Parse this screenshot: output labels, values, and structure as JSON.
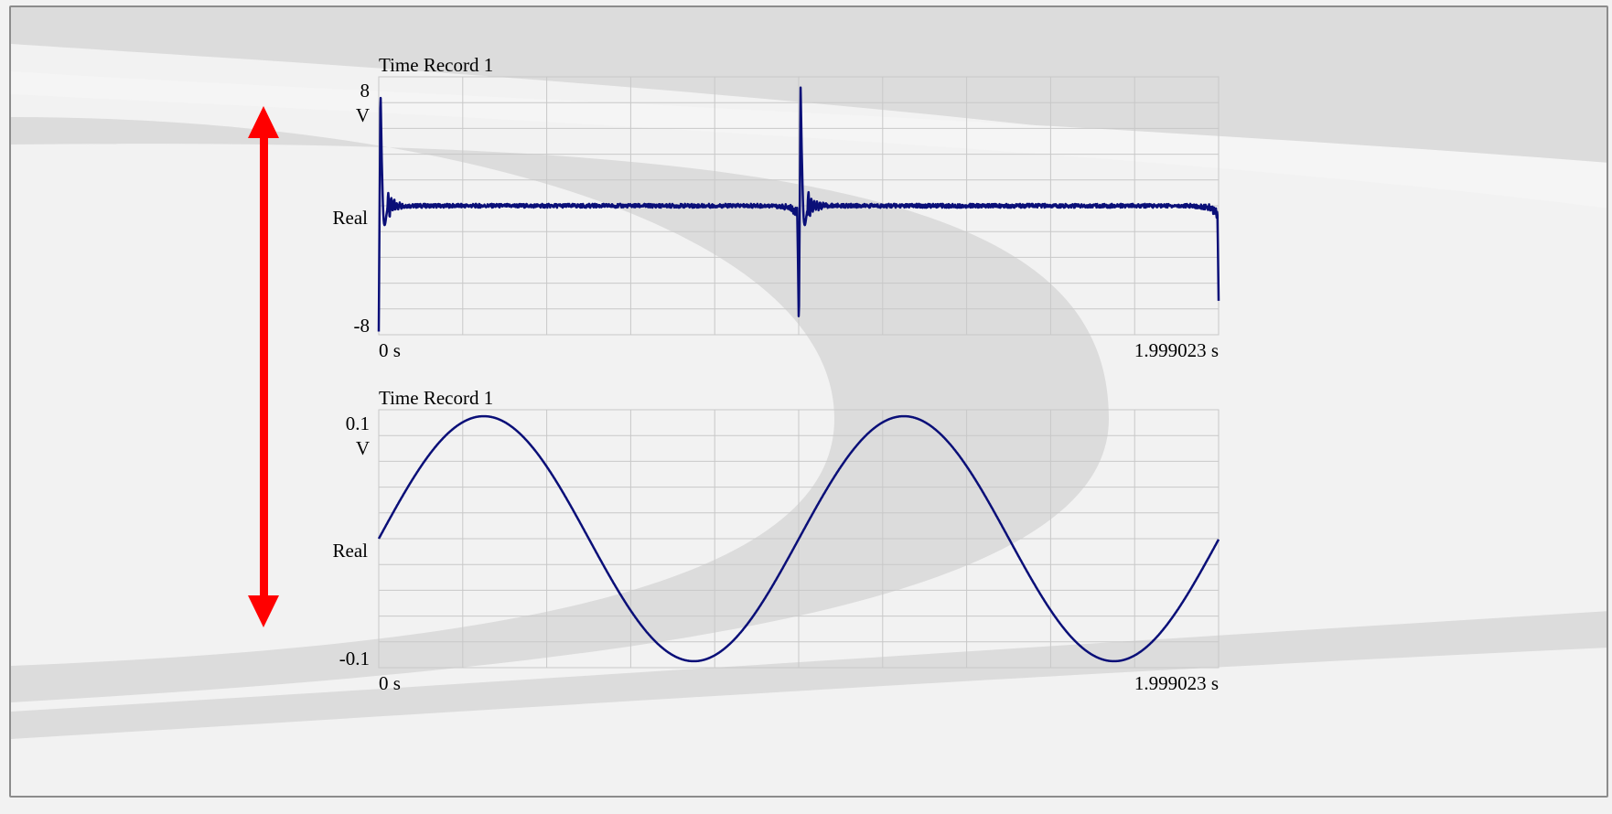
{
  "chart_data": [
    {
      "type": "line",
      "title": "Time Record 1",
      "ylabel_unit": "V",
      "ylabel": "Real",
      "y_tick_top": "8",
      "y_tick_bottom": "-8",
      "x_tick_left": "0  s",
      "x_tick_right": "1.999023   s",
      "xlim": [
        0,
        1.999023
      ],
      "ylim": [
        -8,
        8
      ],
      "grid": true,
      "line_color": "#0a0f78",
      "series": [
        {
          "shape": "periodic-spike",
          "period": 1.0,
          "baseline": 0,
          "peak": 7.4,
          "trough": -7.8,
          "ringing_decay": 0.015,
          "noise_amplitude": 0.12
        }
      ]
    },
    {
      "type": "line",
      "title": "Time Record 1",
      "ylabel_unit": "V",
      "ylabel": "Real",
      "y_tick_top": "0.1",
      "y_tick_bottom": "-0.1",
      "x_tick_left": "0  s",
      "x_tick_right": "1.999023   s",
      "xlim": [
        0,
        1.999023
      ],
      "ylim": [
        -0.1,
        0.1
      ],
      "grid": true,
      "line_color": "#0a0f78",
      "series": [
        {
          "shape": "sine",
          "amplitude": 0.095,
          "frequency_hz": 1.0,
          "phase": 0
        }
      ]
    }
  ],
  "annotation": {
    "arrow_color": "#ff0000",
    "arrow_meaning": "double-headed-vertical"
  }
}
